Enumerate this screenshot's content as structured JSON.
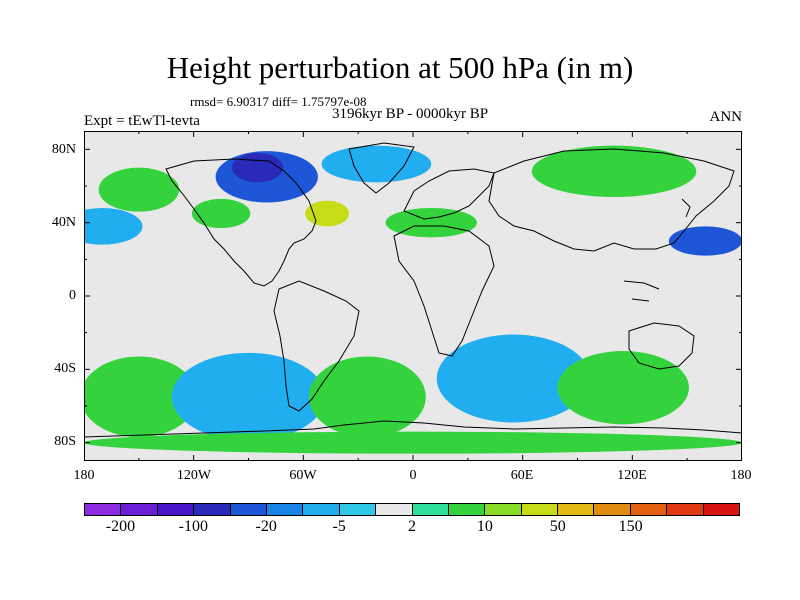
{
  "title": "Height perturbation at 500 hPa (in m)",
  "stats": "rmsd= 6.90317 diff= 1.75797e-08",
  "experiment": "Expt = tEwTl-tevta",
  "period": "3196kyr BP - 0000kyr BP",
  "season": "ANN",
  "axes": {
    "lat_labels": [
      "80N",
      "40N",
      "0",
      "40S",
      "80S"
    ],
    "lon_labels": [
      "180",
      "120W",
      "60W",
      "0",
      "60E",
      "120E",
      "180"
    ]
  },
  "colorbar": {
    "colors": [
      "#8b2be2",
      "#6a1fd6",
      "#4b16c8",
      "#2a2ab8",
      "#1e56d8",
      "#1a84e6",
      "#20aef0",
      "#30c8e6",
      "#e8e8e8",
      "#30e09a",
      "#34d23c",
      "#88dc28",
      "#c6dc16",
      "#e2ba14",
      "#e08c12",
      "#e06010",
      "#e03810",
      "#d81412"
    ],
    "labels": [
      "-200",
      "-100",
      "-20",
      "-5",
      "2",
      "10",
      "50",
      "150"
    ]
  },
  "palette": {
    "neutral": "#e8e8e8",
    "coast": "#000000"
  },
  "regions": [
    {
      "name": "blob-arctic-canada",
      "level": -20,
      "lon": -80,
      "lat": 65,
      "rx": 28,
      "ry": 14
    },
    {
      "name": "blob-arctic-canada-core",
      "level": -100,
      "lon": -85,
      "lat": 70,
      "rx": 14,
      "ry": 8
    },
    {
      "name": "blob-north-atlantic",
      "level": -5,
      "lon": -20,
      "lat": 72,
      "rx": 30,
      "ry": 10
    },
    {
      "name": "blob-north-pacific",
      "level": -5,
      "lon": -170,
      "lat": 38,
      "rx": 22,
      "ry": 10
    },
    {
      "name": "blob-alaska",
      "level": 10,
      "lon": -150,
      "lat": 58,
      "rx": 22,
      "ry": 12
    },
    {
      "name": "blob-canada-ridge",
      "level": 10,
      "lon": -105,
      "lat": 45,
      "rx": 16,
      "ry": 8
    },
    {
      "name": "blob-labrador",
      "level": 50,
      "lon": -47,
      "lat": 45,
      "rx": 12,
      "ry": 7
    },
    {
      "name": "blob-europe",
      "level": 10,
      "lon": 10,
      "lat": 40,
      "rx": 25,
      "ry": 8
    },
    {
      "name": "blob-siberia",
      "level": 50,
      "lon": 110,
      "lat": 68,
      "rx": 35,
      "ry": 11
    },
    {
      "name": "blob-siberia-ring",
      "level": 10,
      "lon": 110,
      "lat": 68,
      "rx": 45,
      "ry": 14
    },
    {
      "name": "blob-east-pacific",
      "level": -20,
      "lon": 160,
      "lat": 30,
      "rx": 20,
      "ry": 8
    },
    {
      "name": "blob-south-pacific-high",
      "level": 50,
      "lon": -150,
      "lat": -55,
      "rx": 22,
      "ry": 16
    },
    {
      "name": "blob-south-pacific-ring",
      "level": 10,
      "lon": -150,
      "lat": -55,
      "rx": 32,
      "ry": 22
    },
    {
      "name": "blob-drake-low",
      "level": -100,
      "lon": -90,
      "lat": -60,
      "rx": 28,
      "ry": 16
    },
    {
      "name": "blob-drake-ring",
      "level": -5,
      "lon": -90,
      "lat": -55,
      "rx": 42,
      "ry": 24
    },
    {
      "name": "blob-south-atlantic-high",
      "level": 50,
      "lon": -25,
      "lat": -55,
      "rx": 22,
      "ry": 16
    },
    {
      "name": "blob-south-atlantic-ring",
      "level": 10,
      "lon": -25,
      "lat": -55,
      "rx": 32,
      "ry": 22
    },
    {
      "name": "blob-indian-low",
      "level": -100,
      "lon": 55,
      "lat": -50,
      "rx": 28,
      "ry": 15
    },
    {
      "name": "blob-indian-ring",
      "level": -5,
      "lon": 55,
      "lat": -45,
      "rx": 42,
      "ry": 24
    },
    {
      "name": "blob-australia-high",
      "level": 50,
      "lon": 110,
      "lat": -50,
      "rx": 22,
      "ry": 14
    },
    {
      "name": "blob-australia-ring",
      "level": 10,
      "lon": 115,
      "lat": -50,
      "rx": 36,
      "ry": 20
    },
    {
      "name": "blob-antarctic-band",
      "level": 10,
      "lon": 0,
      "lat": -80,
      "rx": 180,
      "ry": 6
    }
  ]
}
